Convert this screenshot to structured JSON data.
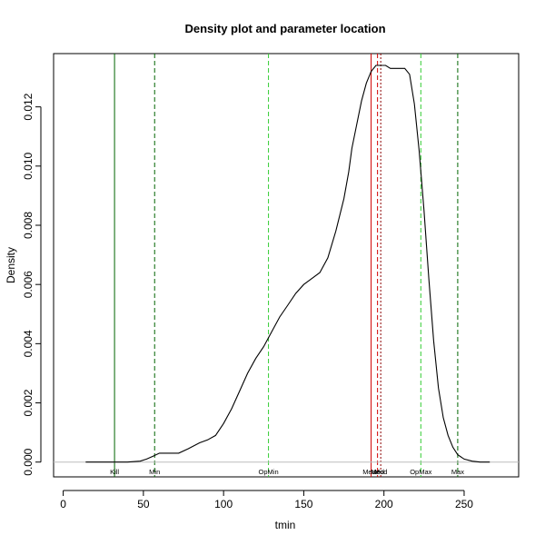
{
  "chart_data": {
    "type": "line",
    "title": "Density plot and parameter location",
    "xlabel": "tmin",
    "ylabel": "Density",
    "xlim": [
      -6,
      284
    ],
    "ylim": [
      -0.0005,
      0.0138
    ],
    "x_ticks": [
      0,
      50,
      100,
      150,
      200,
      250
    ],
    "y_ticks": [
      0.0,
      0.002,
      0.004,
      0.006,
      0.008,
      0.01,
      0.012
    ],
    "y_tick_labels": [
      "0.000",
      "0.002",
      "0.004",
      "0.006",
      "0.008",
      "0.010",
      "0.012"
    ],
    "grid": false,
    "series": [
      {
        "color": "#000000",
        "x": [
          14,
          30,
          40,
          48,
          52,
          56,
          60,
          65,
          72,
          78,
          85,
          90,
          95,
          100,
          105,
          110,
          115,
          120,
          125,
          130,
          135,
          140,
          145,
          150,
          155,
          160,
          165,
          170,
          175,
          178,
          180,
          183,
          186,
          189,
          192,
          195,
          198,
          201,
          204,
          207,
          210,
          213,
          216,
          219,
          222,
          225,
          228,
          231,
          234,
          237,
          240,
          243,
          246,
          250,
          255,
          260,
          266
        ],
        "y": [
          0.0,
          0.0,
          0.0,
          3e-05,
          0.0001,
          0.0002,
          0.0003,
          0.0003,
          0.0003,
          0.00045,
          0.00065,
          0.00075,
          0.0009,
          0.0013,
          0.0018,
          0.0024,
          0.003,
          0.0035,
          0.0039,
          0.0044,
          0.0049,
          0.0053,
          0.0057,
          0.006,
          0.0062,
          0.0064,
          0.0069,
          0.0078,
          0.0089,
          0.0098,
          0.0106,
          0.0114,
          0.0122,
          0.0128,
          0.0132,
          0.0134,
          0.0134,
          0.0134,
          0.0133,
          0.0133,
          0.0133,
          0.0133,
          0.0131,
          0.0121,
          0.0105,
          0.0085,
          0.0062,
          0.0041,
          0.0025,
          0.0015,
          0.0009,
          0.0005,
          0.00025,
          0.0001,
          3e-05,
          0.0,
          0.0
        ]
      }
    ],
    "baseline": {
      "y": 0,
      "color": "#bebebe"
    },
    "markers": [
      {
        "label": "Kill",
        "x": 32,
        "color": "#006400",
        "style": "solid"
      },
      {
        "label": "Min",
        "x": 57,
        "color": "#006400",
        "style": "dashed"
      },
      {
        "label": "OpMin",
        "x": 128,
        "color": "#32cd32",
        "style": "dashed"
      },
      {
        "label": "Mean",
        "x": 192,
        "color": "#d00000",
        "style": "solid"
      },
      {
        "label": "Med",
        "x": 196,
        "color": "#d00000",
        "style": "dashed"
      },
      {
        "label": "Mod",
        "x": 198,
        "color": "#8b0000",
        "style": "dotted"
      },
      {
        "label": "OpMax",
        "x": 223,
        "color": "#32cd32",
        "style": "dashed"
      },
      {
        "label": "Max",
        "x": 246,
        "color": "#006400",
        "style": "dashed"
      }
    ]
  }
}
